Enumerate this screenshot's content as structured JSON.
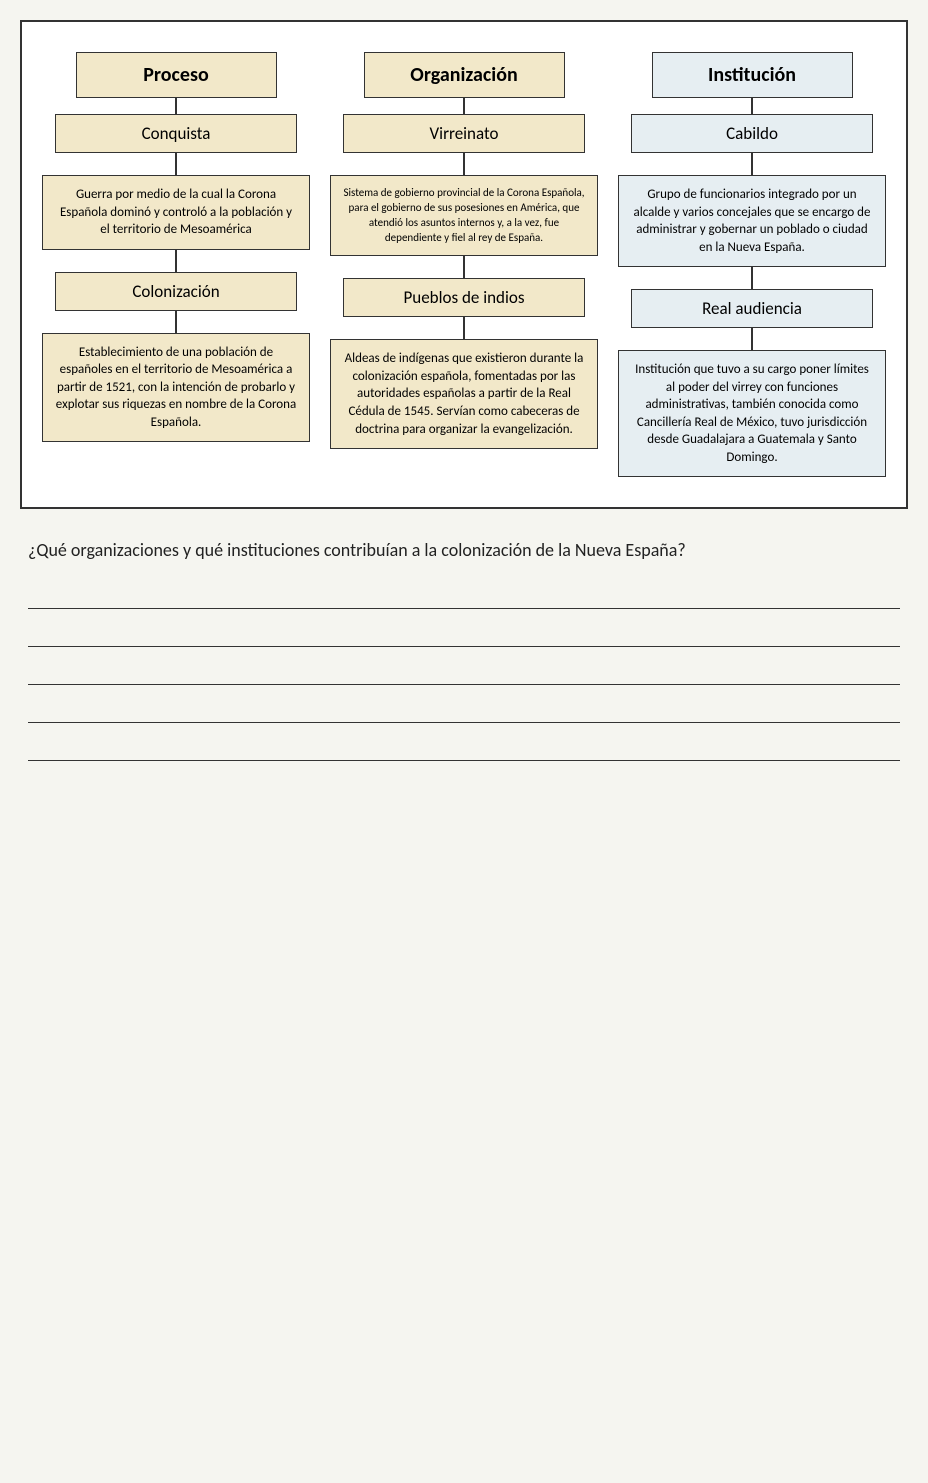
{
  "diagram": {
    "frame_border_color": "#333333",
    "background_color": "#ffffff",
    "columns": [
      {
        "header": {
          "text": "Proceso",
          "bg_color": "#f2e8c9",
          "font_size": 20,
          "font_weight": "bold"
        },
        "sub1": {
          "text": "Conquista",
          "bg_color": "#f2e8c9",
          "font_size": 17
        },
        "desc1": {
          "text": "Guerra por medio de la cual la Corona Española dominó y controló a la población y el territorio de Mesoamérica",
          "bg_color": "#f2e8c9",
          "font_size": 13
        },
        "sub2": {
          "text": "Colonización",
          "bg_color": "#f2e8c9",
          "font_size": 17
        },
        "desc2": {
          "text": "Establecimiento de una población de españoles en el territorio de Mesoamérica a partir de 1521, con la intención de probarlo y explotar sus riquezas en nombre de la Corona Española.",
          "bg_color": "#f2e8c9",
          "font_size": 13
        }
      },
      {
        "header": {
          "text": "Organización",
          "bg_color": "#f2e8c9",
          "font_size": 20,
          "font_weight": "bold"
        },
        "sub1": {
          "text": "Virreinato",
          "bg_color": "#f2e8c9",
          "font_size": 17
        },
        "desc1": {
          "text": "Sistema de gobierno provincial de la Corona Española, para el gobierno de sus posesiones en América, que atendió los asuntos internos y, a la vez, fue dependiente y fiel al rey de España.",
          "bg_color": "#f2e8c9",
          "font_size": 11
        },
        "sub2": {
          "text": "Pueblos de indios",
          "bg_color": "#f2e8c9",
          "font_size": 17
        },
        "desc2": {
          "text": "Aldeas de indígenas que existieron durante la colonización española, fomentadas por las autoridades españolas a partir de la Real Cédula de 1545. Servían como cabeceras de doctrina para organizar la evangelización.",
          "bg_color": "#f2e8c9",
          "font_size": 13
        }
      },
      {
        "header": {
          "text": "Institución",
          "bg_color": "#e6eef2",
          "font_size": 20,
          "font_weight": "bold"
        },
        "sub1": {
          "text": "Cabildo",
          "bg_color": "#e6eef2",
          "font_size": 17
        },
        "desc1": {
          "text": "Grupo de funcionarios integrado por un alcalde y varios concejales que se encargo de administrar y gobernar un poblado o ciudad en la Nueva España.",
          "bg_color": "#e6eef2",
          "font_size": 13
        },
        "sub2": {
          "text": "Real audiencia",
          "bg_color": "#e6eef2",
          "font_size": 17
        },
        "desc2": {
          "text": "Institución que tuvo a su cargo poner límites al poder del virrey con funciones administrativas, también conocida como Cancillería Real de México, tuvo jurisdicción desde Guadalajara a Guatemala y Santo Domingo.",
          "bg_color": "#e6eef2",
          "font_size": 13
        }
      }
    ]
  },
  "question": {
    "text": "¿Qué organizaciones y qué instituciones contribuían a la colonización de la Nueva España?",
    "font_size": 18,
    "answer_lines": 5,
    "line_color": "#333333"
  }
}
